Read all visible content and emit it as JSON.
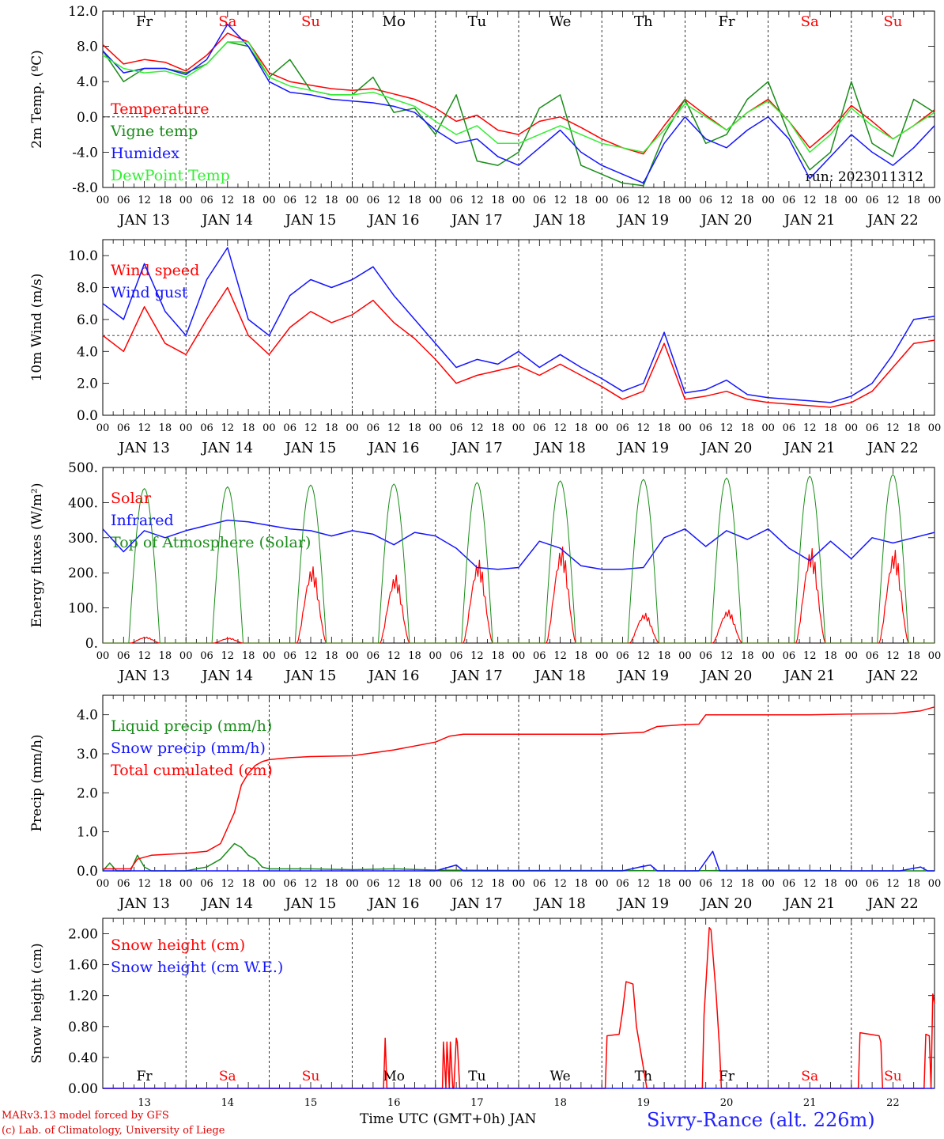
{
  "run_label": "run: 2023011312",
  "footer": {
    "model_line": "MARv3.13 model forced by GFS",
    "credit_line": "(c) Lab. of Climatology, University of Liege",
    "time_axis_label": "Time UTC (GMT+0h) JAN",
    "station": "Sivry-Rance (alt. 226m)"
  },
  "days": {
    "weekday_labels": [
      "Fr",
      "Sa",
      "Su",
      "Mo",
      "Tu",
      "We",
      "Th",
      "Fr",
      "Sa",
      "Su"
    ],
    "weekend": [
      false,
      true,
      true,
      false,
      false,
      false,
      false,
      false,
      true,
      true
    ],
    "date_labels": [
      "JAN 13",
      "JAN 14",
      "JAN 15",
      "JAN 16",
      "JAN 17",
      "JAN 18",
      "JAN 19",
      "JAN 20",
      "JAN 21",
      "JAN 22"
    ],
    "day_numbers": [
      "13",
      "14",
      "15",
      "16",
      "17",
      "18",
      "19",
      "20",
      "21",
      "22"
    ],
    "hour_labels": [
      "00",
      "06",
      "12",
      "18"
    ],
    "final_hour_label": "00"
  },
  "colors": {
    "red": "#ff0000",
    "green": "#1a8c1a",
    "blue": "#1515ff",
    "lightgreen": "#33ee33"
  },
  "chart_data": [
    {
      "type": "line",
      "ylabel": "2m Temp. (ºC)",
      "ylim": [
        -8,
        12
      ],
      "ytick_labels": [
        "12.0",
        "8.0",
        "4.0",
        "0.0",
        "-4.0",
        "-8.0"
      ],
      "ytick_values": [
        12,
        8,
        4,
        0,
        -4,
        -8
      ],
      "reference_line": 0,
      "x_unit": "hours since Jan 13 00 UTC",
      "series": [
        {
          "name": "Temperature",
          "color": "red",
          "x": [
            0,
            6,
            12,
            18,
            24,
            30,
            36,
            42,
            48,
            54,
            60,
            66,
            72,
            78,
            84,
            90,
            96,
            102,
            108,
            114,
            120,
            126,
            132,
            138,
            144,
            150,
            156,
            162,
            168,
            174,
            180,
            186,
            192,
            198,
            204,
            210,
            216,
            222,
            228,
            234,
            240
          ],
          "y": [
            8.2,
            6.0,
            6.5,
            6.2,
            5.2,
            7.0,
            9.5,
            8.5,
            5.0,
            4.0,
            3.6,
            3.2,
            3.0,
            3.2,
            2.6,
            2.0,
            1.0,
            -0.5,
            0.2,
            -1.5,
            -2.0,
            -0.5,
            0.0,
            -1.2,
            -2.5,
            -3.5,
            -4.2,
            -1.0,
            2.0,
            0.2,
            -1.5,
            0.5,
            2.0,
            -0.5,
            -3.5,
            -1.5,
            1.3,
            -0.5,
            -2.5,
            -1.0,
            0.8
          ]
        },
        {
          "name": "Vigne temp",
          "color": "green",
          "x": [
            0,
            6,
            12,
            18,
            24,
            30,
            36,
            42,
            48,
            54,
            60,
            66,
            72,
            78,
            84,
            90,
            96,
            102,
            108,
            114,
            120,
            126,
            132,
            138,
            144,
            150,
            156,
            162,
            168,
            174,
            180,
            186,
            192,
            198,
            204,
            210,
            216,
            222,
            228,
            234,
            240
          ],
          "y": [
            7.5,
            4.0,
            5.5,
            5.5,
            5.0,
            6.0,
            8.5,
            8.0,
            4.5,
            6.5,
            3.0,
            2.5,
            2.5,
            4.5,
            0.5,
            1.0,
            -2.0,
            2.5,
            -5.0,
            -5.5,
            -4.0,
            1.0,
            2.5,
            -5.5,
            -6.5,
            -7.5,
            -7.8,
            -2.0,
            2.0,
            -3.0,
            -2.0,
            2.0,
            4.0,
            -2.0,
            -6.0,
            -4.0,
            4.0,
            -3.0,
            -4.5,
            2.0,
            0.5
          ]
        },
        {
          "name": "Humidex",
          "color": "blue",
          "x": [
            0,
            6,
            12,
            18,
            24,
            30,
            36,
            42,
            48,
            54,
            60,
            66,
            72,
            78,
            84,
            90,
            96,
            102,
            108,
            114,
            120,
            126,
            132,
            138,
            144,
            150,
            156,
            162,
            168,
            174,
            180,
            186,
            192,
            198,
            204,
            210,
            216,
            222,
            228,
            234,
            240
          ],
          "y": [
            7.5,
            5.0,
            5.5,
            5.5,
            4.8,
            6.5,
            10.5,
            8.0,
            4.0,
            2.8,
            2.5,
            2.0,
            1.8,
            1.6,
            1.2,
            0.5,
            -1.5,
            -3.0,
            -2.5,
            -4.5,
            -5.5,
            -3.5,
            -1.5,
            -4.0,
            -5.5,
            -6.5,
            -7.5,
            -3.0,
            0.0,
            -2.5,
            -3.5,
            -1.5,
            0.0,
            -2.5,
            -7.0,
            -4.5,
            -2.0,
            -4.0,
            -5.5,
            -3.5,
            -1.0
          ]
        },
        {
          "name": "DewPoint Temp",
          "color": "lightgreen",
          "x": [
            0,
            6,
            12,
            18,
            24,
            30,
            36,
            42,
            48,
            54,
            60,
            66,
            72,
            78,
            84,
            90,
            96,
            102,
            108,
            114,
            120,
            126,
            132,
            138,
            144,
            150,
            156,
            162,
            168,
            174,
            180,
            186,
            192,
            198,
            204,
            210,
            216,
            222,
            228,
            234,
            240
          ],
          "y": [
            7.0,
            5.5,
            5.0,
            5.2,
            4.5,
            6.0,
            8.5,
            8.5,
            4.5,
            3.5,
            3.0,
            2.5,
            2.5,
            2.8,
            2.0,
            1.2,
            -0.5,
            -2.0,
            -1.0,
            -3.0,
            -3.0,
            -2.0,
            -1.0,
            -2.0,
            -3.0,
            -3.5,
            -4.0,
            -1.5,
            1.5,
            0.0,
            -1.5,
            0.5,
            1.8,
            -0.5,
            -4.0,
            -2.0,
            1.0,
            -1.0,
            -2.5,
            -1.0,
            0.5
          ]
        }
      ]
    },
    {
      "type": "line",
      "ylabel": "10m Wind (m/s)",
      "ylim": [
        0,
        11
      ],
      "ytick_labels": [
        "10.0",
        "8.0",
        "6.0",
        "4.0",
        "2.0",
        "0.0"
      ],
      "ytick_values": [
        10,
        8,
        6,
        4,
        2,
        0
      ],
      "reference_line": 5,
      "x_unit": "hours since Jan 13 00 UTC",
      "series": [
        {
          "name": "Wind speed",
          "color": "red",
          "x": [
            0,
            6,
            12,
            18,
            24,
            30,
            36,
            42,
            48,
            54,
            60,
            66,
            72,
            78,
            84,
            90,
            96,
            102,
            108,
            114,
            120,
            126,
            132,
            138,
            144,
            150,
            156,
            162,
            168,
            174,
            180,
            186,
            192,
            198,
            204,
            210,
            216,
            222,
            228,
            234,
            240
          ],
          "y": [
            5.0,
            4.0,
            6.8,
            4.5,
            3.8,
            6.0,
            8.0,
            5.0,
            3.8,
            5.5,
            6.5,
            5.8,
            6.3,
            7.2,
            5.8,
            4.8,
            3.5,
            2.0,
            2.5,
            2.8,
            3.1,
            2.5,
            3.2,
            2.5,
            1.8,
            1.0,
            1.5,
            4.5,
            1.0,
            1.2,
            1.5,
            1.0,
            0.8,
            0.7,
            0.6,
            0.5,
            0.8,
            1.5,
            3.0,
            4.5,
            4.7
          ]
        },
        {
          "name": "Wind gust",
          "color": "blue",
          "x": [
            0,
            6,
            12,
            18,
            24,
            30,
            36,
            42,
            48,
            54,
            60,
            66,
            72,
            78,
            84,
            90,
            96,
            102,
            108,
            114,
            120,
            126,
            132,
            138,
            144,
            150,
            156,
            162,
            168,
            174,
            180,
            186,
            192,
            198,
            204,
            210,
            216,
            222,
            228,
            234,
            240
          ],
          "y": [
            7.0,
            6.0,
            9.5,
            6.5,
            5.0,
            8.5,
            10.5,
            6.0,
            5.0,
            7.5,
            8.5,
            8.0,
            8.5,
            9.3,
            7.5,
            6.0,
            4.5,
            3.0,
            3.5,
            3.2,
            4.0,
            3.0,
            3.8,
            3.0,
            2.3,
            1.5,
            2.0,
            5.2,
            1.4,
            1.6,
            2.2,
            1.3,
            1.1,
            1.0,
            0.9,
            0.8,
            1.2,
            2.0,
            3.8,
            6.0,
            6.2
          ]
        }
      ]
    },
    {
      "type": "line",
      "ylabel": "Energy fluxes (W/m²)",
      "ylim": [
        0,
        500
      ],
      "ytick_labels": [
        "500.",
        "400.",
        "300.",
        "200.",
        "100.",
        "0."
      ],
      "ytick_values": [
        500,
        400,
        300,
        200,
        100,
        0
      ],
      "x_unit": "hours since Jan 13 00 UTC",
      "series": [
        {
          "name": "Solar",
          "color": "red",
          "daily_peaks": [
            18,
            15,
            230,
            205,
            250,
            290,
            90,
            100,
            285,
            280
          ]
        },
        {
          "name": "Infrared",
          "color": "blue",
          "x": [
            0,
            6,
            12,
            18,
            24,
            30,
            36,
            42,
            48,
            54,
            60,
            66,
            72,
            78,
            84,
            90,
            96,
            102,
            108,
            114,
            120,
            126,
            132,
            138,
            144,
            150,
            156,
            162,
            168,
            174,
            180,
            186,
            192,
            198,
            204,
            210,
            216,
            222,
            228,
            234,
            240
          ],
          "y": [
            325,
            260,
            320,
            300,
            320,
            335,
            350,
            345,
            335,
            325,
            320,
            305,
            320,
            310,
            280,
            315,
            305,
            270,
            215,
            210,
            215,
            290,
            270,
            220,
            210,
            210,
            215,
            300,
            325,
            275,
            320,
            295,
            325,
            270,
            235,
            290,
            240,
            300,
            285,
            300,
            315
          ]
        },
        {
          "name": "Top of Atmosphere (Solar)",
          "color": "green",
          "daily_peaks": [
            440,
            445,
            450,
            453,
            457,
            462,
            466,
            470,
            475,
            480
          ]
        }
      ]
    },
    {
      "type": "line",
      "ylabel": "Precip (mm/h)",
      "ylim": [
        0,
        4.5
      ],
      "ytick_labels": [
        "4.0",
        "3.0",
        "2.0",
        "1.0",
        "0.0"
      ],
      "ytick_values": [
        4,
        3,
        2,
        1,
        0
      ],
      "x_unit": "hours since Jan 13 00 UTC",
      "series": [
        {
          "name": "Liquid precip (mm/h)",
          "color": "green",
          "x": [
            0,
            2,
            4,
            8,
            10,
            12,
            14,
            18,
            24,
            30,
            34,
            38,
            40,
            42,
            44,
            46,
            48,
            52,
            60,
            72,
            84,
            96,
            120,
            144,
            168,
            192,
            216,
            240
          ],
          "y": [
            0,
            0.2,
            0,
            0,
            0.4,
            0.1,
            0,
            0,
            0,
            0.1,
            0.3,
            0.7,
            0.6,
            0.4,
            0.3,
            0.1,
            0.05,
            0.05,
            0.05,
            0.03,
            0.05,
            0.02,
            0.01,
            0.01,
            0,
            0.02,
            0,
            0
          ]
        },
        {
          "name": "Snow precip (mm/h)",
          "color": "blue",
          "x": [
            0,
            96,
            100,
            102,
            104,
            150,
            155,
            158,
            160,
            172,
            176,
            178,
            180,
            230,
            236,
            238,
            240
          ],
          "y": [
            0,
            0,
            0.1,
            0.15,
            0,
            0,
            0.1,
            0.15,
            0,
            0,
            0.5,
            0,
            0,
            0,
            0.1,
            0,
            0
          ]
        },
        {
          "name": "Total cumulated (cm)",
          "color": "red",
          "x": [
            0,
            8,
            10,
            14,
            18,
            24,
            30,
            34,
            38,
            40,
            42,
            44,
            46,
            48,
            54,
            60,
            72,
            84,
            96,
            100,
            104,
            120,
            144,
            156,
            160,
            168,
            172,
            174,
            180,
            192,
            204,
            216,
            228,
            236,
            240
          ],
          "y": [
            0.05,
            0.05,
            0.3,
            0.4,
            0.42,
            0.45,
            0.5,
            0.7,
            1.5,
            2.2,
            2.5,
            2.7,
            2.8,
            2.85,
            2.9,
            2.93,
            2.95,
            3.1,
            3.3,
            3.45,
            3.5,
            3.5,
            3.5,
            3.55,
            3.7,
            3.75,
            3.76,
            4.0,
            4.0,
            4.0,
            4.0,
            4.02,
            4.03,
            4.1,
            4.2
          ]
        }
      ]
    },
    {
      "type": "line",
      "ylabel": "Snow height (cm)",
      "ylim": [
        0,
        2.2
      ],
      "ytick_labels": [
        "2.00",
        "1.60",
        "1.20",
        "0.80",
        "0.40",
        "0.00"
      ],
      "ytick_values": [
        2.0,
        1.6,
        1.2,
        0.8,
        0.4,
        0
      ],
      "x_unit": "hours since Jan 13 00 UTC",
      "series": [
        {
          "name": "Snow height (cm)",
          "color": "red",
          "x": [
            0,
            81,
            81.5,
            82,
            98,
            98.3,
            99,
            99.3,
            100,
            100.3,
            101,
            101.3,
            102,
            102.3,
            103,
            103.5,
            104,
            145,
            145.5,
            149,
            150,
            151,
            153,
            154,
            157,
            158,
            173,
            173.5,
            175,
            175.5,
            177,
            178,
            178.5,
            179,
            180,
            218,
            218.5,
            224,
            224.5,
            225,
            237,
            237.5,
            238.5,
            239,
            239.5,
            240
          ],
          "y": [
            0,
            0,
            0.65,
            0,
            0,
            0.6,
            0,
            0.6,
            0,
            0.6,
            0,
            0,
            0.65,
            0.6,
            0,
            0,
            0,
            0,
            0.68,
            0.7,
            1.0,
            1.38,
            1.35,
            0.8,
            0,
            0,
            0,
            0.95,
            2.08,
            2.05,
            1.2,
            0.5,
            0,
            0,
            0,
            0,
            0.72,
            0.68,
            0.6,
            0,
            0,
            0.7,
            0.68,
            0,
            1.22,
            1.1
          ]
        },
        {
          "name": "Snow height (cm W.E.)",
          "color": "blue",
          "x": [
            0,
            240
          ],
          "y": [
            0,
            0
          ]
        }
      ]
    }
  ]
}
